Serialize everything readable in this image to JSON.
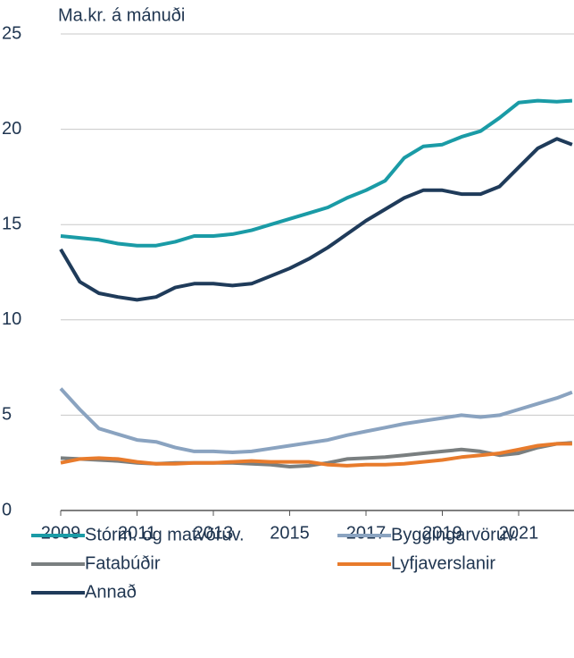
{
  "chart_data": {
    "type": "line",
    "y_label": "Ma.kr. á mánuði",
    "x": [
      2009,
      2009.5,
      2010,
      2010.5,
      2011,
      2011.5,
      2012,
      2012.5,
      2013,
      2013.5,
      2014,
      2014.5,
      2015,
      2015.5,
      2016,
      2016.5,
      2017,
      2017.5,
      2018,
      2018.5,
      2019,
      2019.5,
      2020,
      2020.5,
      2021,
      2021.5,
      2022,
      2022.4
    ],
    "series": [
      {
        "name": "Stórm. og matvöruv.",
        "color": "#1a9ba6",
        "values": [
          14.4,
          14.3,
          14.2,
          14.0,
          13.9,
          13.9,
          14.1,
          14.4,
          14.4,
          14.5,
          14.7,
          15.0,
          15.3,
          15.6,
          15.9,
          16.4,
          16.8,
          17.3,
          18.5,
          19.1,
          19.2,
          19.6,
          19.9,
          20.6,
          21.4,
          21.5,
          21.45,
          21.5
        ]
      },
      {
        "name": "Byggingarvöruv.",
        "color": "#8aa3c0",
        "values": [
          6.4,
          5.3,
          4.3,
          4.0,
          3.7,
          3.6,
          3.3,
          3.1,
          3.1,
          3.05,
          3.1,
          3.25,
          3.4,
          3.55,
          3.7,
          3.95,
          4.15,
          4.35,
          4.55,
          4.7,
          4.85,
          5.0,
          4.9,
          5.0,
          5.3,
          5.6,
          5.9,
          6.2
        ]
      },
      {
        "name": "Fatabúðir",
        "color": "#7a7f80",
        "values": [
          2.75,
          2.7,
          2.65,
          2.6,
          2.5,
          2.45,
          2.5,
          2.5,
          2.5,
          2.5,
          2.45,
          2.4,
          2.3,
          2.35,
          2.5,
          2.7,
          2.75,
          2.8,
          2.9,
          3.0,
          3.1,
          3.2,
          3.1,
          2.9,
          3.0,
          3.3,
          3.5,
          3.55
        ]
      },
      {
        "name": "Lyfjaverslanir",
        "color": "#e87b2c",
        "values": [
          2.5,
          2.7,
          2.75,
          2.7,
          2.55,
          2.45,
          2.45,
          2.5,
          2.5,
          2.55,
          2.6,
          2.55,
          2.55,
          2.55,
          2.4,
          2.35,
          2.4,
          2.4,
          2.45,
          2.55,
          2.65,
          2.8,
          2.9,
          3.0,
          3.2,
          3.4,
          3.5,
          3.5
        ]
      },
      {
        "name": "Annað",
        "color": "#1f3b5a",
        "values": [
          13.7,
          12.0,
          11.4,
          11.2,
          11.05,
          11.2,
          11.7,
          11.9,
          11.9,
          11.8,
          11.9,
          12.3,
          12.7,
          13.2,
          13.8,
          14.5,
          15.2,
          15.8,
          16.4,
          16.8,
          16.8,
          16.6,
          16.6,
          17.0,
          18.0,
          19.0,
          19.5,
          19.2
        ]
      }
    ],
    "xlim": [
      2009,
      2022.45
    ],
    "xticks": [
      2009,
      2011,
      2013,
      2015,
      2017,
      2019,
      2021
    ],
    "ylim": [
      0,
      25
    ],
    "yticks": [
      0,
      5,
      10,
      15,
      20,
      25
    ],
    "grid": true
  }
}
